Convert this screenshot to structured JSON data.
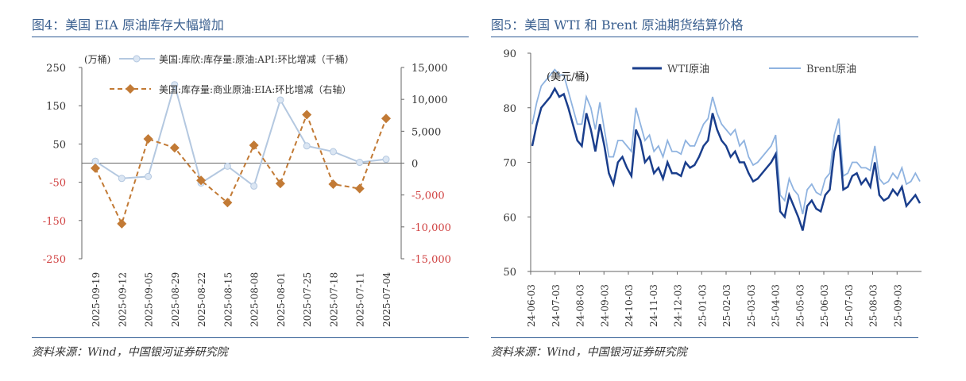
{
  "chart_data": [
    {
      "type": "line",
      "title": "图4：美国 EIA 原油库存大幅增加",
      "unit_left": "(万桶)",
      "categories": [
        "2025-09-19",
        "2025-09-12",
        "2025-09-05",
        "2025-08-29",
        "2025-08-22",
        "2025-08-15",
        "2025-08-08",
        "2025-08-01",
        "2025-07-25",
        "2025-07-18",
        "2025-07-11",
        "2025-07-04"
      ],
      "yticks_left": [
        "250",
        "150",
        "50",
        "-50",
        "-150",
        "-250"
      ],
      "ylim_left": [
        -250,
        250
      ],
      "yticks_right": [
        "15,000",
        "10,000",
        "5,000",
        "0",
        "-5,000",
        "-10,000",
        "-15,000"
      ],
      "ylim_right": [
        -15000,
        15000
      ],
      "series": [
        {
          "name": "美国:库欣:库存量:原油:API:环比增减（千桶）",
          "axis": "left",
          "color": "#b4c8e0",
          "values": [
            5,
            -40,
            -35,
            205,
            -52,
            -8,
            -60,
            165,
            45,
            30,
            2,
            10
          ]
        },
        {
          "name": "美国:库存量:商业原油:EIA:环比增减（右轴）",
          "axis": "right",
          "color": "#c27a35",
          "values": [
            -800,
            -9500,
            3800,
            2400,
            -2700,
            -6200,
            2800,
            -3200,
            7600,
            -3300,
            -4000,
            7000
          ]
        }
      ],
      "source": "资料来源：Wind，中国银河证券研究院"
    },
    {
      "type": "line",
      "title": "图5：美国 WTI 和 Brent 原油期货结算价格",
      "unit": "(美元/桶)",
      "xticks": [
        "24-06-03",
        "24-07-03",
        "24-08-03",
        "24-09-03",
        "24-10-03",
        "24-11-03",
        "24-12-03",
        "25-01-03",
        "25-02-03",
        "25-03-03",
        "25-04-03",
        "25-05-03",
        "25-06-03",
        "25-07-03",
        "25-08-03",
        "25-09-03"
      ],
      "yticks": [
        "90",
        "80",
        "70",
        "60",
        "50"
      ],
      "ylim": [
        50,
        90
      ],
      "series": [
        {
          "name": "WTI原油",
          "color": "#1a3e8c",
          "values": [
            73,
            77,
            80,
            81,
            82,
            83.5,
            82,
            82.5,
            80,
            77,
            74,
            73,
            79,
            76,
            72,
            77,
            73,
            68,
            66,
            70,
            71,
            69,
            67.5,
            76,
            74,
            70,
            71,
            68,
            69,
            67,
            70,
            68,
            68,
            67.5,
            70,
            69,
            69.5,
            71,
            73,
            74,
            79,
            76,
            74,
            73,
            71,
            72,
            70,
            70,
            68,
            66.5,
            67,
            68,
            69,
            70,
            71.5,
            61,
            60,
            64,
            62,
            60,
            57.5,
            62,
            63,
            61.5,
            61,
            64,
            65,
            72,
            75,
            65,
            65.5,
            67.5,
            68,
            66,
            67,
            65.5,
            70,
            64,
            63,
            63.5,
            65,
            64,
            65.5,
            62,
            63,
            64,
            62.5
          ]
        },
        {
          "name": "Brent原油",
          "color": "#8fb3e0",
          "values": [
            77,
            81,
            84,
            85,
            86,
            87,
            86,
            86,
            83,
            80,
            77,
            77,
            82,
            80,
            76,
            81,
            76,
            71,
            71,
            74,
            74,
            73,
            72,
            80,
            77,
            74,
            75,
            72,
            73,
            71,
            74,
            72,
            72,
            71.5,
            74,
            73,
            73,
            75,
            77,
            78,
            82,
            79,
            77,
            76,
            75,
            76,
            73,
            74,
            71,
            69.5,
            70,
            71,
            72,
            73,
            75,
            64,
            63,
            67,
            65,
            64,
            60.5,
            65,
            66,
            64.5,
            64,
            67,
            68,
            75,
            78,
            67.5,
            68,
            70,
            70,
            69,
            69,
            68.5,
            73,
            67,
            66,
            66.5,
            68,
            67,
            69,
            66,
            66.5,
            68,
            66.5
          ]
        }
      ],
      "source": "资料来源：Wind，中国银河证券研究院"
    }
  ]
}
